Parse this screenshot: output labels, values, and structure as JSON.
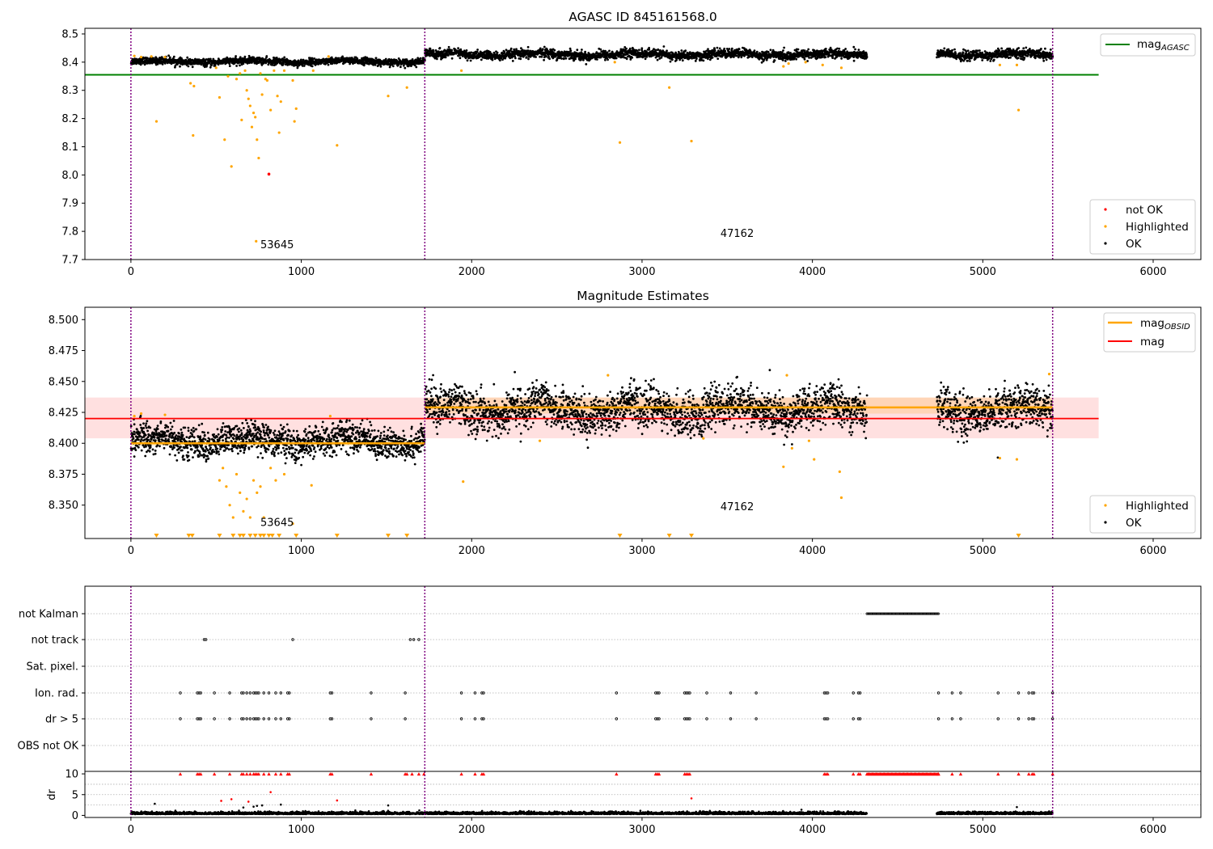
{
  "chart_data": [
    {
      "id": "panel1",
      "type": "scatter",
      "title": "AGASC ID 845161568.0",
      "xlim": [
        -270,
        6280
      ],
      "ylim": [
        7.7,
        8.52
      ],
      "xticks": [
        0,
        1000,
        2000,
        3000,
        4000,
        5000,
        6000
      ],
      "yticks": [
        7.7,
        7.8,
        7.9,
        8.0,
        8.1,
        8.2,
        8.3,
        8.4,
        8.5
      ],
      "ytick_labels": [
        "7.7",
        "7.8",
        "7.9",
        "8.0",
        "8.1",
        "8.2",
        "8.3",
        "8.4",
        "8.5"
      ],
      "vlines": [
        0,
        1725,
        5410
      ],
      "hline": {
        "label": "mag",
        "label_sub": "AGASC",
        "y": 8.355,
        "x_range": [
          -270,
          5680
        ],
        "color": "#008000"
      },
      "segments": [
        {
          "x_range": [
            0,
            1725
          ],
          "mean": 8.402,
          "spread": 0.006
        },
        {
          "x_range": [
            1725,
            4320
          ],
          "mean": 8.427,
          "spread": 0.008
        },
        {
          "x_range": [
            4730,
            5410
          ],
          "mean": 8.427,
          "spread": 0.008
        }
      ],
      "highlighted": [
        [
          20,
          8.422
        ],
        [
          60,
          8.418
        ],
        [
          120,
          8.42
        ],
        [
          150,
          8.19
        ],
        [
          200,
          8.418
        ],
        [
          350,
          8.325
        ],
        [
          365,
          8.14
        ],
        [
          370,
          8.315
        ],
        [
          500,
          8.38
        ],
        [
          520,
          8.275
        ],
        [
          550,
          8.125
        ],
        [
          570,
          8.35
        ],
        [
          590,
          8.03
        ],
        [
          620,
          8.34
        ],
        [
          640,
          8.36
        ],
        [
          650,
          8.195
        ],
        [
          670,
          8.37
        ],
        [
          680,
          8.3
        ],
        [
          690,
          8.27
        ],
        [
          700,
          8.245
        ],
        [
          710,
          8.17
        ],
        [
          720,
          8.22
        ],
        [
          730,
          8.205
        ],
        [
          735,
          7.765
        ],
        [
          740,
          8.125
        ],
        [
          750,
          8.06
        ],
        [
          760,
          8.36
        ],
        [
          770,
          8.285
        ],
        [
          790,
          8.34
        ],
        [
          800,
          8.335
        ],
        [
          820,
          8.23
        ],
        [
          840,
          8.37
        ],
        [
          860,
          8.28
        ],
        [
          870,
          8.15
        ],
        [
          880,
          8.26
        ],
        [
          900,
          8.37
        ],
        [
          950,
          8.335
        ],
        [
          960,
          8.19
        ],
        [
          970,
          8.235
        ],
        [
          1070,
          8.37
        ],
        [
          1160,
          8.42
        ],
        [
          1210,
          8.105
        ],
        [
          1510,
          8.28
        ],
        [
          1620,
          8.31
        ],
        [
          1940,
          8.37
        ],
        [
          2840,
          8.4
        ],
        [
          2870,
          8.115
        ],
        [
          3160,
          8.31
        ],
        [
          3290,
          8.12
        ],
        [
          3830,
          8.385
        ],
        [
          3860,
          8.395
        ],
        [
          3960,
          8.4
        ],
        [
          4060,
          8.39
        ],
        [
          4170,
          8.38
        ],
        [
          5100,
          8.39
        ],
        [
          5200,
          8.39
        ],
        [
          5210,
          8.23
        ]
      ],
      "not_ok": [
        [
          810,
          8.003
        ]
      ],
      "annotations": [
        {
          "text": "53645",
          "x": 760,
          "y": 7.74
        },
        {
          "text": "47162",
          "x": 3460,
          "y": 7.78
        }
      ],
      "legend": {
        "position": "lower-right",
        "entries": [
          "not OK",
          "Highlighted",
          "OK"
        ]
      },
      "legend_top": {
        "position": "upper-right"
      },
      "colors": {
        "ok": "#000000",
        "highlighted": "#ffa500",
        "not_ok": "#ff0000",
        "vline": "#800080"
      }
    },
    {
      "id": "panel2",
      "type": "scatter",
      "title": "Magnitude Estimates",
      "xlim": [
        -270,
        6280
      ],
      "ylim": [
        8.323,
        8.51
      ],
      "xticks": [
        0,
        1000,
        2000,
        3000,
        4000,
        5000,
        6000
      ],
      "yticks": [
        8.35,
        8.375,
        8.4,
        8.425,
        8.45,
        8.475,
        8.5
      ],
      "ytick_labels": [
        "8.350",
        "8.375",
        "8.400",
        "8.425",
        "8.450",
        "8.475",
        "8.500"
      ],
      "vlines": [
        0,
        1725,
        5410
      ],
      "mag": {
        "label": "mag",
        "y": 8.42,
        "band": [
          8.404,
          8.437
        ],
        "x_range": [
          -270,
          5680
        ],
        "color": "#ff0000"
      },
      "mag_obsid": {
        "label": "mag",
        "label_sub": "OBSID",
        "color": "#ffa500",
        "segments": [
          {
            "x_range": [
              0,
              1725
            ],
            "y": 8.4,
            "band": [
              8.398,
              8.403
            ]
          },
          {
            "x_range": [
              1725,
              5410
            ],
            "y": 8.429,
            "band": [
              8.424,
              8.437
            ]
          }
        ]
      },
      "segments": [
        {
          "x_range": [
            0,
            1725
          ],
          "mean": 8.402,
          "spread": 0.006
        },
        {
          "x_range": [
            1725,
            4320
          ],
          "mean": 8.427,
          "spread": 0.008
        },
        {
          "x_range": [
            4730,
            5410
          ],
          "mean": 8.427,
          "spread": 0.008
        }
      ],
      "highlighted": [
        [
          20,
          8.422
        ],
        [
          60,
          8.424
        ],
        [
          200,
          8.423
        ],
        [
          520,
          8.37
        ],
        [
          540,
          8.38
        ],
        [
          560,
          8.365
        ],
        [
          580,
          8.35
        ],
        [
          600,
          8.34
        ],
        [
          620,
          8.375
        ],
        [
          640,
          8.36
        ],
        [
          660,
          8.345
        ],
        [
          680,
          8.355
        ],
        [
          700,
          8.34
        ],
        [
          720,
          8.37
        ],
        [
          740,
          8.36
        ],
        [
          760,
          8.365
        ],
        [
          780,
          8.34
        ],
        [
          820,
          8.38
        ],
        [
          850,
          8.37
        ],
        [
          900,
          8.375
        ],
        [
          950,
          8.335
        ],
        [
          1060,
          8.366
        ],
        [
          1170,
          8.422
        ],
        [
          1950,
          8.369
        ],
        [
          2400,
          8.402
        ],
        [
          2800,
          8.455
        ],
        [
          3360,
          8.404
        ],
        [
          3830,
          8.381
        ],
        [
          3850,
          8.455
        ],
        [
          3880,
          8.396
        ],
        [
          3980,
          8.402
        ],
        [
          4010,
          8.387
        ],
        [
          4160,
          8.377
        ],
        [
          4170,
          8.356
        ],
        [
          5100,
          8.388
        ],
        [
          5200,
          8.387
        ],
        [
          5390,
          8.456
        ]
      ],
      "clipped_markers_x": [
        150,
        340,
        360,
        520,
        600,
        640,
        660,
        700,
        730,
        760,
        780,
        810,
        830,
        870,
        970,
        1210,
        1510,
        1620,
        2870,
        3160,
        3290,
        5210
      ],
      "annotations": [
        {
          "text": "53645",
          "x": 760,
          "y": 8.333
        },
        {
          "text": "47162",
          "x": 3460,
          "y": 8.346
        }
      ],
      "legend": {
        "position": "lower-right",
        "entries": [
          "Highlighted",
          "OK"
        ]
      },
      "legend_top": {
        "position": "upper-right"
      },
      "colors": {
        "ok": "#000000",
        "highlighted": "#ffa500",
        "band_mag": "#ffdddd",
        "band_obsid": "#ffe3c8",
        "vline": "#800080"
      }
    },
    {
      "id": "panel3",
      "type": "scatter",
      "xlim": [
        -270,
        6280
      ],
      "vlines": [
        0,
        1725,
        5410
      ],
      "flags": [
        {
          "label": "not Kalman",
          "points": [],
          "range": [
            4320,
            4740
          ]
        },
        {
          "label": "not track",
          "points": [
            430,
            440,
            950,
            1640,
            1660,
            1690
          ]
        },
        {
          "label": "Sat. pixel.",
          "points": []
        },
        {
          "label": "Ion. rad.",
          "points": [
            290,
            390,
            400,
            410,
            490,
            580,
            650,
            660,
            680,
            700,
            720,
            730,
            740,
            750,
            780,
            810,
            850,
            880,
            920,
            930,
            1170,
            1180,
            1410,
            1610,
            1940,
            2020,
            2060,
            2070,
            2850,
            3080,
            3090,
            3100,
            3250,
            3260,
            3270,
            3280,
            3380,
            3520,
            3670,
            4070,
            4080,
            4090,
            4240,
            4270,
            4280,
            4740,
            4820,
            4870,
            5090,
            5210,
            5270,
            5290,
            5300,
            5410
          ]
        },
        {
          "label": "dr > 5",
          "points": [
            290,
            390,
            400,
            410,
            490,
            580,
            650,
            660,
            680,
            700,
            720,
            730,
            740,
            750,
            780,
            810,
            850,
            880,
            920,
            930,
            1170,
            1180,
            1410,
            1610,
            1940,
            2020,
            2060,
            2070,
            2850,
            3080,
            3090,
            3100,
            3250,
            3260,
            3270,
            3280,
            3380,
            3520,
            3670,
            4070,
            4080,
            4090,
            4240,
            4270,
            4280,
            4740,
            4820,
            4870,
            5090,
            5210,
            5270,
            5290,
            5300,
            5410
          ]
        },
        {
          "label": "OBS not OK",
          "points": []
        }
      ],
      "colors": {
        "flag": "#000000",
        "grid": "#b0b0b0"
      }
    },
    {
      "id": "panel4",
      "type": "scatter",
      "ylabel": "dr",
      "xlim": [
        -270,
        6280
      ],
      "ylim": [
        -0.5,
        10.6
      ],
      "xticks": [
        0,
        1000,
        2000,
        3000,
        4000,
        5000,
        6000
      ],
      "yticks": [
        0,
        5,
        10
      ],
      "ytick_labels": [
        "0",
        "5",
        "10"
      ],
      "vlines": [
        0,
        1725,
        5410
      ],
      "dr_clipped_x": [
        290,
        390,
        400,
        410,
        490,
        580,
        650,
        660,
        680,
        700,
        720,
        730,
        740,
        750,
        780,
        810,
        850,
        880,
        920,
        930,
        1170,
        1180,
        1410,
        1610,
        1620,
        1650,
        1690,
        1720,
        1940,
        2020,
        2060,
        2070,
        2850,
        3080,
        3090,
        3100,
        3250,
        3260,
        3270,
        3280,
        4070,
        4080,
        4090,
        4240,
        4270,
        4280,
        4740,
        4820,
        4870,
        5090,
        5210,
        5270,
        5290,
        5300,
        5410
      ],
      "dr_clipped_range": [
        4320,
        4740
      ],
      "dr_outliers": [
        [
          140,
          2.8
        ],
        [
          530,
          3.5
        ],
        [
          590,
          3.9
        ],
        [
          660,
          1.9
        ],
        [
          690,
          3.3
        ],
        [
          720,
          2.1
        ],
        [
          740,
          2.3
        ],
        [
          770,
          2.4
        ],
        [
          820,
          5.6
        ],
        [
          880,
          2.6
        ],
        [
          1210,
          3.6
        ],
        [
          1510,
          2.4
        ],
        [
          3290,
          4.1
        ],
        [
          5200,
          2.0
        ]
      ],
      "segments": [
        {
          "x_range": [
            0,
            1725
          ],
          "mean": 0.45
        },
        {
          "x_range": [
            1725,
            4320
          ],
          "mean": 0.45
        },
        {
          "x_range": [
            4730,
            5410
          ],
          "mean": 0.45
        }
      ],
      "colors": {
        "ok": "#000000",
        "clipped": "#ff0000"
      }
    }
  ],
  "axis_tick_labels_x": [
    "0",
    "1000",
    "2000",
    "3000",
    "4000",
    "5000",
    "6000"
  ]
}
